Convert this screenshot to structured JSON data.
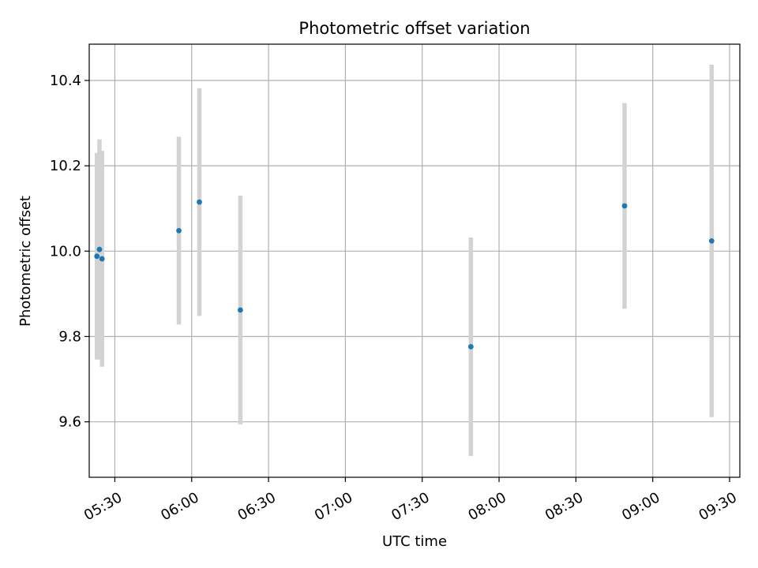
{
  "chart_data": {
    "type": "scatter",
    "title": "Photometric offset variation",
    "xlabel": "UTC time",
    "ylabel": "Photometric offset",
    "grid": true,
    "xlim": [
      "05:20",
      "09:34"
    ],
    "ylim": [
      9.47,
      10.485
    ],
    "x_ticks": [
      "05:30",
      "06:00",
      "06:30",
      "07:00",
      "07:30",
      "08:00",
      "08:30",
      "09:00",
      "09:30"
    ],
    "y_ticks": [
      "9.6",
      "9.8",
      "10.0",
      "10.2",
      "10.4"
    ],
    "series": [
      {
        "marker_color": "#1f77b4",
        "errorbar_color": "#d3d3d3",
        "points": [
          {
            "x": "05:23",
            "y": 9.988,
            "yerr": 0.242
          },
          {
            "x": "05:24",
            "y": 10.004,
            "yerr": 0.258
          },
          {
            "x": "05:25",
            "y": 9.982,
            "yerr": 0.253
          },
          {
            "x": "05:55",
            "y": 10.048,
            "yerr": 0.22
          },
          {
            "x": "06:03",
            "y": 10.115,
            "yerr": 0.267
          },
          {
            "x": "06:19",
            "y": 9.862,
            "yerr": 0.268
          },
          {
            "x": "07:49",
            "y": 9.776,
            "yerr": 0.256
          },
          {
            "x": "08:49",
            "y": 10.106,
            "yerr": 0.241
          },
          {
            "x": "09:23",
            "y": 10.024,
            "yerr": 0.413
          }
        ]
      }
    ]
  }
}
